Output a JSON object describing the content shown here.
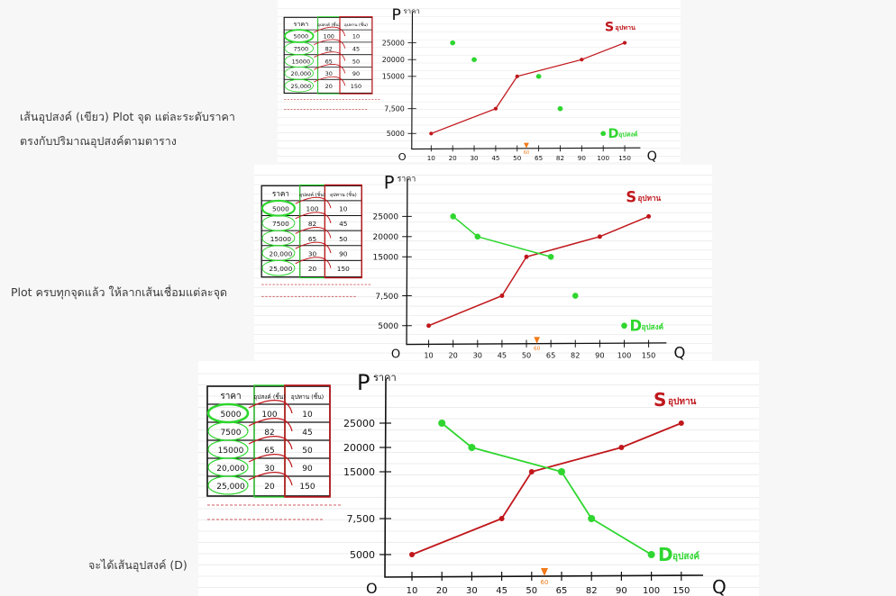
{
  "captions": [
    {
      "lines": [
        "เส้นอุปสงค์ (เขียว) Plot จุด แต่ละระดับราคา",
        "ตรงกับปริมาณอุปสงค์ตามตาราง"
      ]
    },
    {
      "lines": [
        "Plot ครบทุกจุดแล้ว ให้ลากเส้นเชื่อมแต่ละจุด"
      ]
    },
    {
      "lines": [
        "จะได้เส้นอุปสงค์ (D)"
      ]
    }
  ],
  "chart_data": {
    "type": "line",
    "title": "",
    "xlabel": "Q",
    "ylabel": "P ราคา",
    "origin_label": "O",
    "x_ticks": [
      "10",
      "20",
      "30",
      "45",
      "50",
      "65",
      "82",
      "90",
      "100",
      "150"
    ],
    "y_ticks": [
      "5000",
      "7,500",
      "15000",
      "20000",
      "25000"
    ],
    "y_values": [
      5000,
      7500,
      15000,
      20000,
      25000
    ],
    "equilibrium_marker": "60",
    "series": [
      {
        "name": "S อุปทาน",
        "color": "#c0171c",
        "points": [
          [
            10,
            5000
          ],
          [
            45,
            7500
          ],
          [
            50,
            15000
          ],
          [
            90,
            20000
          ],
          [
            150,
            25000
          ]
        ]
      },
      {
        "name": "D อุปสงค์",
        "color": "#2fd62f",
        "points": [
          [
            100,
            5000
          ],
          [
            82,
            7500
          ],
          [
            65,
            15000
          ],
          [
            30,
            20000
          ],
          [
            20,
            25000
          ]
        ]
      }
    ],
    "stages": [
      {
        "demand_connected_points": 0
      },
      {
        "demand_connected_points": 3
      },
      {
        "demand_connected_points": 5
      }
    ]
  },
  "table": {
    "headers": [
      "ราคา",
      "อุปสงค์ (ชิ้น)",
      "อุปทาน (ชิ้น)"
    ],
    "rows": [
      [
        "5000",
        "100",
        "10"
      ],
      [
        "7500",
        "82",
        "45"
      ],
      [
        "15000",
        "65",
        "50"
      ],
      [
        "20,000",
        "30",
        "90"
      ],
      [
        "25,000",
        "20",
        "150"
      ]
    ]
  },
  "colors": {
    "supply": "#c0171c",
    "demand": "#2fd62f",
    "marker": "#f07a1a",
    "rule": "#e6e6e6"
  }
}
